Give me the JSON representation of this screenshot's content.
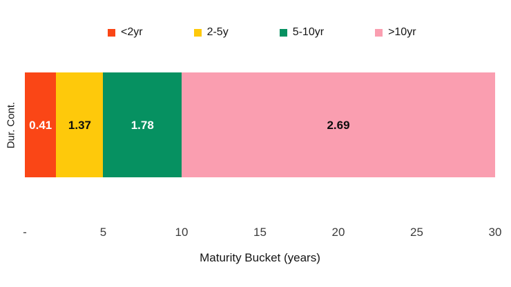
{
  "page": {
    "background_color": "#ffffff"
  },
  "chart_data": {
    "type": "bar",
    "variant": "horizontal-stacked",
    "title": "",
    "xlabel": "Maturity Bucket (years)",
    "ylabel": "Dur. Cont.",
    "xlim": [
      0,
      30
    ],
    "grid": false,
    "legend_position": "top",
    "x_ticks": [
      {
        "value": 0,
        "label": "-"
      },
      {
        "value": 5,
        "label": "5"
      },
      {
        "value": 10,
        "label": "10"
      },
      {
        "value": 15,
        "label": "15"
      },
      {
        "value": 20,
        "label": "20"
      },
      {
        "value": 25,
        "label": "25"
      },
      {
        "value": 30,
        "label": "30"
      }
    ],
    "segments": [
      {
        "name": "<2yr",
        "from": 0,
        "to": 2,
        "value": 0.41,
        "color": "#fa4616",
        "label_color": "#ffffff"
      },
      {
        "name": "2-5y",
        "from": 2,
        "to": 5,
        "value": 1.37,
        "color": "#fec90b",
        "label_color": "#0d0d0d"
      },
      {
        "name": "5-10yr",
        "from": 5,
        "to": 10,
        "value": 1.78,
        "color": "#069161",
        "label_color": "#ffffff"
      },
      {
        "name": ">10yr",
        "from": 10,
        "to": 30,
        "value": 2.69,
        "color": "#fa9eb0",
        "label_color": "#0d0d0d"
      }
    ]
  }
}
